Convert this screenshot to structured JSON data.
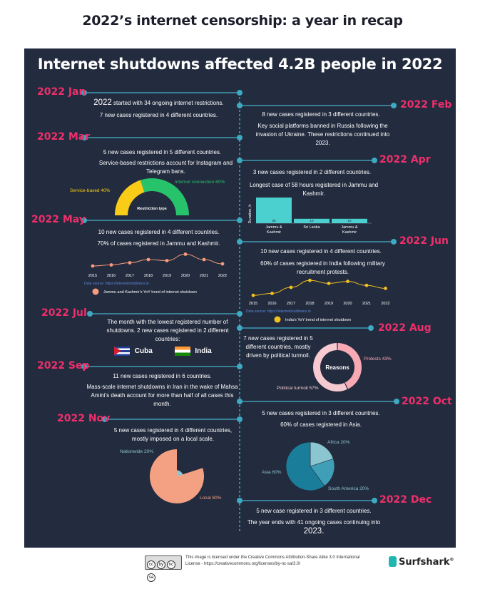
{
  "page_title": "2022’s internet censorship: a year in recap",
  "headline": "Internet shutdowns affected 4.2B people in 2022",
  "months": {
    "jan": "2022 Jan",
    "feb": "2022 Feb",
    "mar": "2022 Mar",
    "apr": "2022 Apr",
    "may": "2022 May",
    "jun": "2022 Jun",
    "jul": "2022 Jul",
    "aug": "2022 Aug",
    "sep": "2022 Sep",
    "oct": "2022 Oct",
    "nov": "2022 Nov",
    "dec": "2022 Dec"
  },
  "text": {
    "jan_1a": "2022",
    "jan_1b": " started with 34 ongoing internet restrictions.",
    "jan_2": "7 new cases registered in 4 different countries.",
    "feb_1": "8 new cases registered in 3 different countries.",
    "feb_2": "Key social platforms banned in Russia following the invasion of Ukraine. These restrictions continued into 2023.",
    "mar_1": "5 new cases registered in 5 different countries.",
    "mar_2": "Service-based restrictions account for Instagram and Telegram bans.",
    "apr_1": "3 new cases registered in 2 different countries.",
    "apr_2": "Longest case of 58 hours registered in Jammu and Kashmir.",
    "may_1": "10 new cases registered in 4 different countries.",
    "may_2": "70% of cases registered in Jammu and Kashmir.",
    "jun_1": "10 new cases registered in 4 different countries.",
    "jun_2": "60% of cases registered in India following military recruitment protests.",
    "jul_1": "The month with the  lowest registered number of shutdowns. 2 new cases registered in 2 different countries:",
    "jul_cuba": "Cuba",
    "jul_india": "India",
    "aug_1": "7 new cases registered in 5 different countries, mostly driven by political turmoil.",
    "sep_1": "11 new cases registered in 6 countries.",
    "sep_2": "Mass-scale internet shutdowns in Iran in the wake of Mahsa Amini’s death account for more than half of all cases this month.",
    "oct_1": "5 new cases registered in 3 different countries.",
    "oct_2": "60% of cases registered in Asia.",
    "nov_1": "5 new cases registered in 4 different countries, mostly imposed on a local scale.",
    "dec_1": "5 new case registered in 3 different countries.",
    "dec_2": "The year ends with 41 ongoing cases continuing into",
    "dec_2b": "2023."
  },
  "chart_data": [
    {
      "type": "pie",
      "id": "restriction-type",
      "title": "Restriction type",
      "variant": "half-donut",
      "labels": [
        "Service-based 40%",
        "Internet connection 60%"
      ],
      "values": [
        40,
        60
      ],
      "colors": [
        "#f9cc18",
        "#27c36b"
      ]
    },
    {
      "type": "bar",
      "id": "duration",
      "ylabel": "Duration, h",
      "categories": [
        "Jammu & Kashmir",
        "Sri Lanka",
        "Jammu & Kashmir"
      ],
      "values": [
        58,
        10,
        10
      ],
      "value_labels": [
        "58",
        "10",
        "10"
      ],
      "color": "#4bcfcf"
    },
    {
      "type": "line",
      "id": "jk-trend",
      "x": [
        "2015",
        "2016",
        "2017",
        "2018",
        "2019",
        "2020",
        "2021",
        "2022"
      ],
      "values": [
        2,
        3,
        5,
        8,
        7,
        13,
        8,
        4
      ],
      "ylim": [
        0,
        16
      ],
      "source": "Data source: https://internetshutdowns.in",
      "legend": "Jammu and Kashmir’s YoY trend of internet shutdown",
      "color": "#f79b7c"
    },
    {
      "type": "line",
      "id": "india-trend",
      "x": [
        "2015",
        "2016",
        "2017",
        "2018",
        "2019",
        "2020",
        "2021",
        "2022"
      ],
      "values": [
        2,
        4,
        10,
        17,
        14,
        16,
        12,
        9
      ],
      "ylim": [
        0,
        20
      ],
      "source": "Data source: https://internetshutdowns.in",
      "legend": "India’s YoY trend of internet shutdown",
      "color": "#f2c020"
    },
    {
      "type": "pie",
      "id": "reasons",
      "title": "Reasons",
      "variant": "donut",
      "labels": [
        "Protests 43%",
        "Political turmoil 57%"
      ],
      "values": [
        43,
        57
      ],
      "colors": [
        "#f7a9b4",
        "#f6cad0"
      ]
    },
    {
      "type": "pie",
      "id": "regions",
      "labels": [
        "Africa 20%",
        "South America 20%",
        "Asia 60%"
      ],
      "values": [
        20,
        20,
        60
      ],
      "colors": [
        "#8ac5d0",
        "#3e9fb6",
        "#1a7e9a"
      ]
    },
    {
      "type": "pie",
      "id": "scale",
      "labels": [
        "Nationwide 20%",
        "Local 80%"
      ],
      "values": [
        20,
        80
      ],
      "colors": [
        "#8ac5d0",
        "#f4a183"
      ]
    }
  ],
  "footer": {
    "license": "This image is licensed under the Creative Commons Attribution-Share Alike 3.0 International License - https://creativecommons.org/licenses/by-nc-sa/3.0/",
    "cc": [
      "cc",
      "by",
      "nc",
      "sa"
    ],
    "brand": "Surfshark",
    "brand_mark": "®"
  }
}
